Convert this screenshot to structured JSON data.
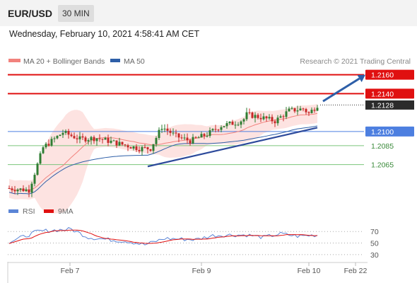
{
  "header": {
    "symbol": "EUR/USD",
    "interval": "30 MIN"
  },
  "timestamp": "Wednesday, February 10, 2021 4:58:41 AM CET",
  "colors": {
    "ma20": "#f2827d",
    "bands": "#fde3e1",
    "ma50": "#2e5fa8",
    "up": "#2e7d32",
    "down": "#c62828",
    "resistance": "#e01010",
    "pivot": "#4d7fe0",
    "support": "#7cc57c",
    "trend": "#2d4a9b",
    "arrow": "#2e5fa8",
    "current": "#2b2b2b",
    "rsi": "#5b85d6",
    "rsi_ma": "#e01010"
  },
  "chart_data": [
    {
      "type": "line",
      "panel": "price",
      "legend": [
        {
          "label": "MA 20 + Bollinger Bands",
          "color": "#f2827d"
        },
        {
          "label": "MA 50",
          "color": "#2e5fa8"
        }
      ],
      "credit": "Research © 2021 Trading Central",
      "ylim": [
        1.2031,
        1.2168
      ],
      "candles_summary": {
        "start": 1.204,
        "low": 1.2038,
        "high": 1.2132,
        "last": 1.2128,
        "count": 110
      },
      "levels": [
        {
          "value": 1.216,
          "label": "1.2160",
          "kind": "resistance"
        },
        {
          "value": 1.214,
          "label": "1.2140",
          "kind": "resistance"
        },
        {
          "value": 1.2128,
          "label": "1.2128",
          "kind": "current"
        },
        {
          "value": 1.21,
          "label": "1.2100",
          "kind": "pivot"
        },
        {
          "value": 1.2085,
          "label": "1.2085",
          "kind": "support"
        },
        {
          "value": 1.2065,
          "label": "1.2065",
          "kind": "support"
        }
      ],
      "trendline": {
        "from": {
          "bar": 49,
          "value": 1.2063
        },
        "to": {
          "bar": 109,
          "value": 1.2104
        }
      },
      "target_arrow": {
        "from": {
          "bar": 111,
          "value": 1.2132
        },
        "to": {
          "bar": 126,
          "value": 1.216
        }
      }
    },
    {
      "type": "line",
      "panel": "rsi",
      "legend": [
        {
          "label": "RSI",
          "color": "#5b85d6"
        },
        {
          "label": "9MA",
          "color": "#e01010"
        }
      ],
      "ylim": [
        20,
        85
      ],
      "levels": [
        {
          "value": 70,
          "label": "70"
        },
        {
          "value": 50,
          "label": "50"
        },
        {
          "value": 30,
          "label": "30"
        }
      ],
      "rsi_summary": {
        "start": 52,
        "peak": 74,
        "trough": 47,
        "last": 64
      }
    }
  ],
  "x_axis": {
    "ticks": [
      "Feb 7",
      "Feb 9",
      "Feb 10",
      "Feb 22"
    ]
  }
}
